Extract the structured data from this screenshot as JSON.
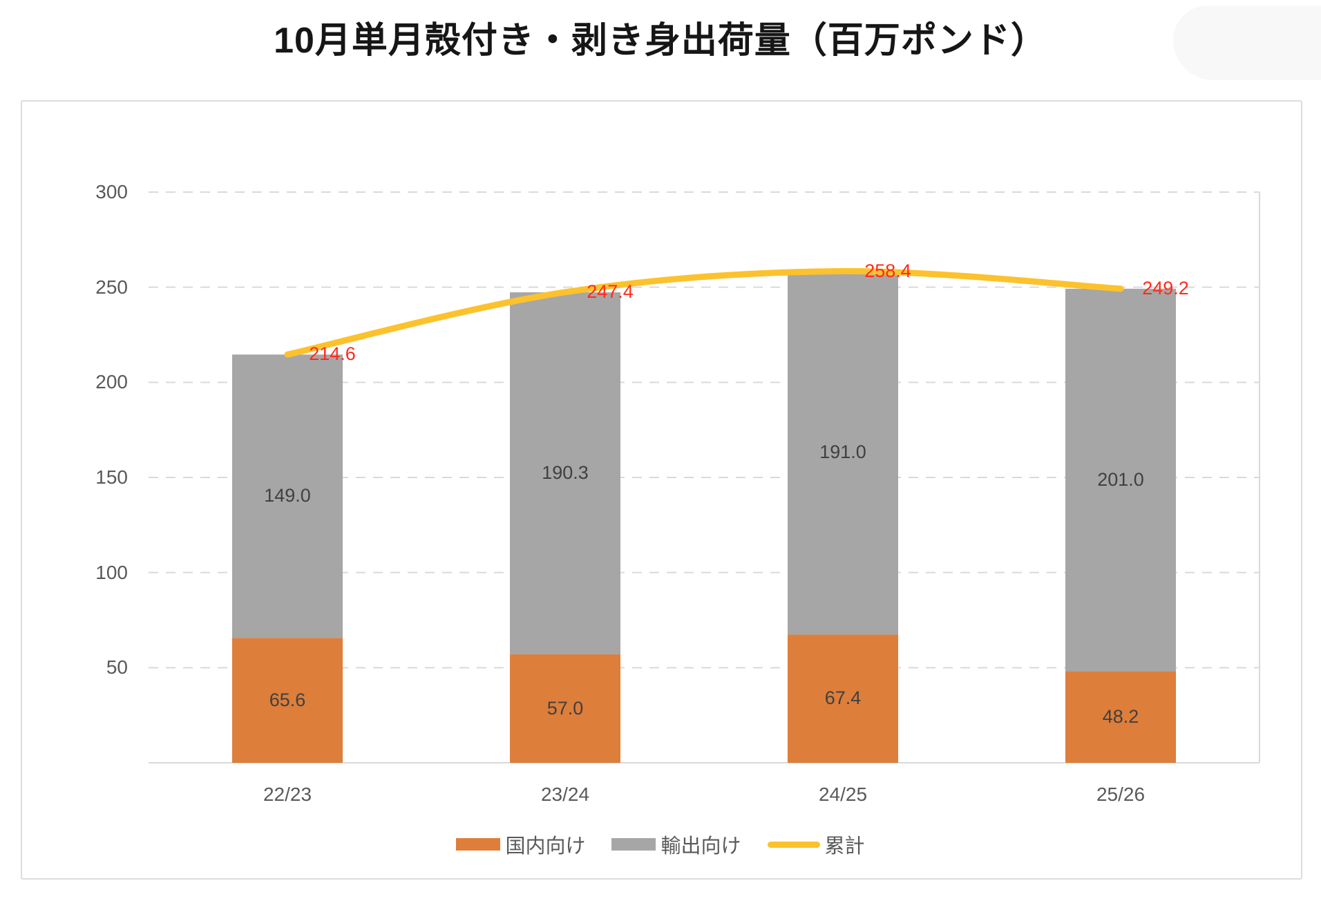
{
  "title": "10月単月殻付き・剥き身出荷量（百万ポンド）",
  "chart_data": {
    "type": "bar",
    "subtype": "stacked-bars-with-cumulative-line",
    "title": "10月単月殻付き・剥き身出荷量（百万ポンド）",
    "categories": [
      "22/23",
      "23/24",
      "24/25",
      "25/26"
    ],
    "series": [
      {
        "name": "国内向け",
        "type": "bar",
        "color": "#DD7E3B",
        "values": [
          65.6,
          57.0,
          67.4,
          48.2
        ]
      },
      {
        "name": "輸出向け",
        "type": "bar",
        "color": "#A6A6A6",
        "values": [
          149.0,
          190.3,
          191.0,
          201.0
        ]
      },
      {
        "name": "累計",
        "type": "line",
        "color": "#FCC22D",
        "values": [
          214.6,
          247.4,
          258.4,
          249.2
        ]
      }
    ],
    "stacked": true,
    "ylim": [
      0,
      300
    ],
    "yticks": [
      50,
      100,
      150,
      200,
      250,
      300
    ],
    "grid": "horizontal-dashed",
    "legend_position": "bottom",
    "value_format": "one-decimal",
    "colors": {
      "bar_value_label": "#404040",
      "line_value_label": "#FF2B1A",
      "axis_label": "#595959",
      "gridline": "#D9D9D9",
      "axis_line": "#D9D9D9"
    }
  }
}
